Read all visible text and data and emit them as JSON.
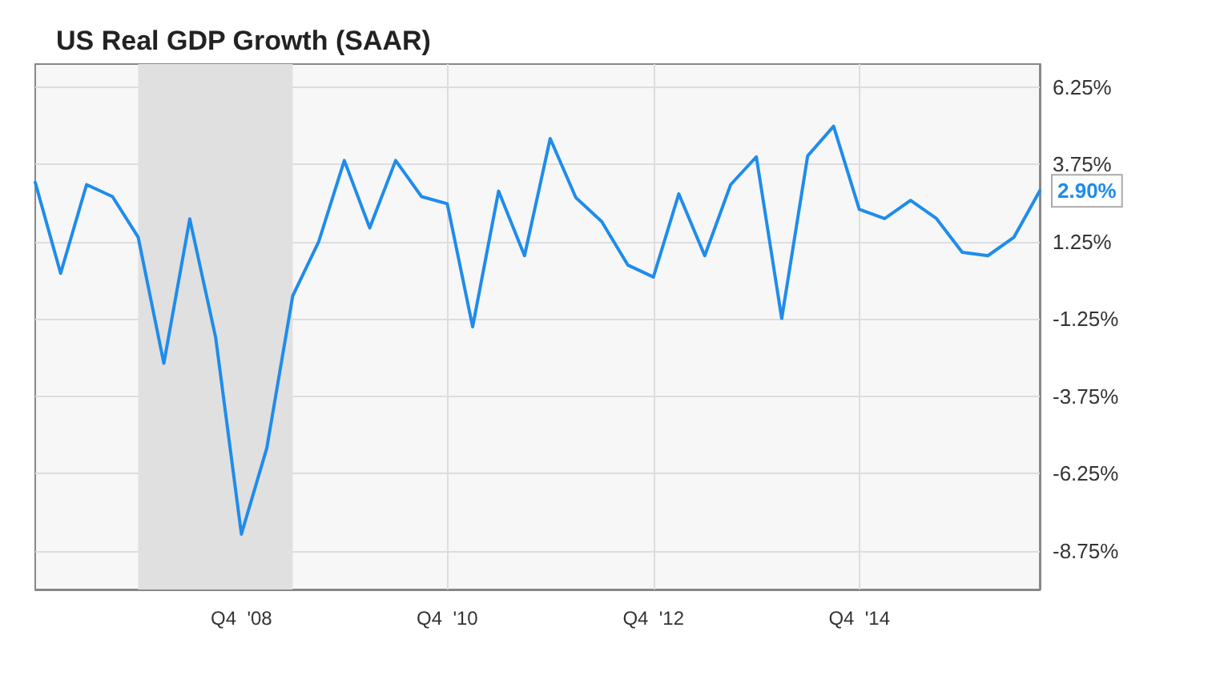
{
  "chart_data": {
    "type": "line",
    "title": "US Real GDP Growth (SAAR)",
    "x": [
      "2006-12",
      "2007-03",
      "2007-06",
      "2007-09",
      "2007-12",
      "2008-03",
      "2008-06",
      "2008-09",
      "2008-12",
      "2009-03",
      "2009-06",
      "2009-09",
      "2009-12",
      "2010-03",
      "2010-06",
      "2010-09",
      "2010-12",
      "2011-03",
      "2011-06",
      "2011-09",
      "2011-12",
      "2012-03",
      "2012-06",
      "2012-09",
      "2012-12",
      "2013-03",
      "2013-06",
      "2013-09",
      "2013-12",
      "2014-03",
      "2014-06",
      "2014-09",
      "2014-12",
      "2015-03",
      "2015-06",
      "2015-09",
      "2015-12",
      "2016-03",
      "2016-06",
      "2016-09"
    ],
    "series": [
      {
        "color": "#1f8ceb",
        "values": [
          3.17,
          0.23,
          3.1,
          2.71,
          1.4,
          -2.68,
          1.99,
          -1.86,
          -8.21,
          -5.43,
          -0.5,
          1.25,
          3.88,
          1.7,
          3.88,
          2.71,
          2.48,
          -1.5,
          2.89,
          0.8,
          4.59,
          2.68,
          1.9,
          0.5,
          0.11,
          2.8,
          0.8,
          3.1,
          4.0,
          -1.23,
          4.03,
          4.99,
          2.3,
          2.0,
          2.59,
          2.0,
          0.91,
          0.8,
          1.39,
          2.9
        ],
        "value_labels": [
          null,
          null,
          null,
          null,
          null,
          null,
          null,
          null,
          null,
          null,
          null,
          null,
          null,
          null,
          null,
          null,
          null,
          null,
          null,
          null,
          null,
          null,
          null,
          null,
          null,
          null,
          null,
          null,
          null,
          null,
          null,
          null,
          null,
          null,
          null,
          null,
          null,
          null,
          null,
          "2.90%"
        ]
      }
    ],
    "xlim": [
      "2006-12",
      "2016-09"
    ],
    "xticks": [
      {
        "value": "2008-12",
        "label": "Q4  '08"
      },
      {
        "value": "2010-12",
        "label": "Q4  '10"
      },
      {
        "value": "2012-12",
        "label": "Q4  '12"
      },
      {
        "value": "2014-12",
        "label": "Q4  '14"
      }
    ],
    "ylim": [
      -10,
      7
    ],
    "yticks": [
      {
        "value": 6.25,
        "label": "6.25%"
      },
      {
        "value": 3.75,
        "label": "3.75%"
      },
      {
        "value": 1.25,
        "label": "1.25%"
      },
      {
        "value": -1.25,
        "label": "-1.25%"
      },
      {
        "value": -3.75,
        "label": "-3.75%"
      },
      {
        "value": -6.25,
        "label": "-6.25%"
      },
      {
        "value": -8.75,
        "label": "-8.75%"
      }
    ],
    "bands": [
      {
        "axis": "x",
        "from": "2007-12",
        "to": "2009-06",
        "color": "#e0e0e0"
      }
    ],
    "grid": true,
    "marker": "none",
    "line_style": "solid"
  }
}
